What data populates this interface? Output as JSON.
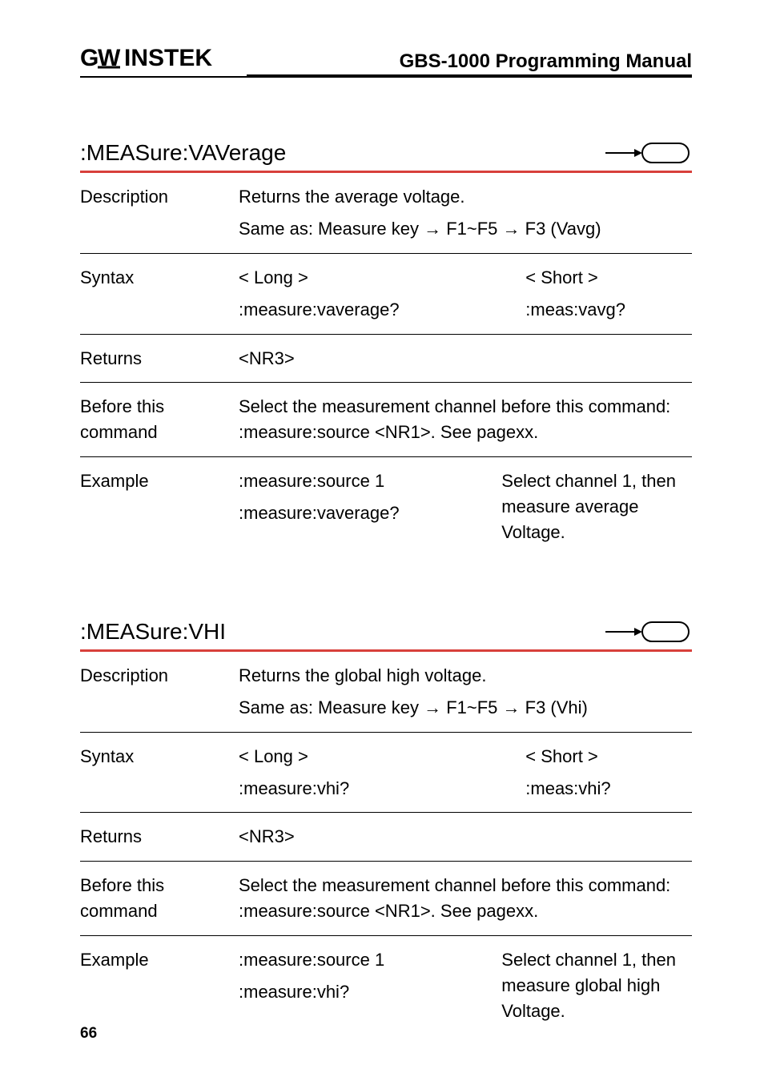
{
  "header": {
    "logo_text": "GWINSTEK",
    "title": "GBS-1000 Programming Manual"
  },
  "sections": [
    {
      "title": ":MEASure:VAVerage",
      "rows": [
        {
          "label": "Description",
          "lines": [
            "Returns the average voltage.",
            "Same as: Measure key → F1~F5 → F3 (Vavg)"
          ]
        },
        {
          "label": "Syntax",
          "cols": [
            {
              "top": "< Long >",
              "bottom": ":measure:vaverage?"
            },
            {
              "top": "< Short >",
              "bottom": ":meas:vavg?"
            }
          ]
        },
        {
          "label": "Returns",
          "lines": [
            "<NR3>"
          ]
        },
        {
          "label": "Before this command",
          "lines": [
            "Select the measurement channel before this command: :measure:source <NR1>. See pagexx."
          ]
        },
        {
          "label": "Example",
          "cols_example": {
            "left": [
              ":measure:source 1",
              ":measure:vaverage?"
            ],
            "right": "Select channel 1, then measure average Voltage."
          }
        }
      ]
    },
    {
      "title": ":MEASure:VHI",
      "rows": [
        {
          "label": "Description",
          "lines": [
            "Returns the global high voltage.",
            "Same as: Measure key → F1~F5 → F3 (Vhi)"
          ]
        },
        {
          "label": "Syntax",
          "cols": [
            {
              "top": "< Long >",
              "bottom": ":measure:vhi?"
            },
            {
              "top": "< Short >",
              "bottom": ":meas:vhi?"
            }
          ]
        },
        {
          "label": "Returns",
          "lines": [
            "<NR3>"
          ]
        },
        {
          "label": "Before this command",
          "lines": [
            "Select the measurement channel before this command: :measure:source <NR1>. See pagexx."
          ]
        },
        {
          "label": "Example",
          "cols_example": {
            "left": [
              ":measure:source 1",
              ":measure:vhi?"
            ],
            "right": "Select channel 1, then measure global high Voltage."
          }
        }
      ]
    }
  ],
  "page_number": "66",
  "colors": {
    "accent": "#d8403b",
    "text": "#000000",
    "bg": "#ffffff"
  }
}
